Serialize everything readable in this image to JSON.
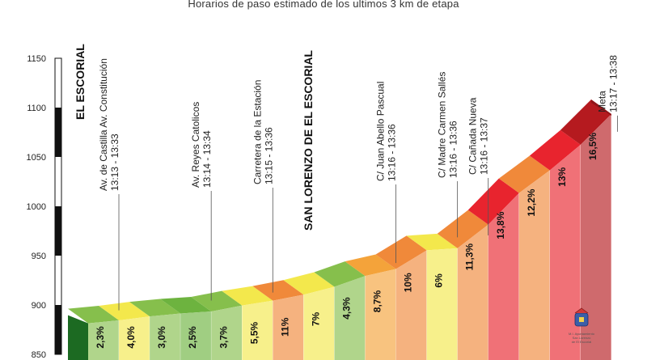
{
  "subtitle": "Horarios de paso estimado de los ultimos 3 km de etapa",
  "colors": {
    "green_dark": "#2f7d2a",
    "green": "#86bf4c",
    "yellow": "#f3e84c",
    "orange": "#f0893a",
    "red": "#e8242e",
    "dark_red": "#b51a1f"
  },
  "chart_data": {
    "type": "area",
    "title": "Horarios de paso estimado de los ultimos 3 km de etapa",
    "ylim": [
      850,
      1150
    ],
    "yticks": [
      "850",
      "900",
      "950",
      "1000",
      "1050",
      "1100",
      "1150"
    ],
    "ytick_values": [
      850,
      900,
      950,
      1000,
      1050,
      1100,
      1150
    ],
    "grid": false,
    "segments": [
      {
        "label": "2,3%",
        "start_alt": 888,
        "end_alt": 891,
        "color": "#86bf4c"
      },
      {
        "label": "4,0%",
        "start_alt": 891,
        "end_alt": 895,
        "color": "#f3e84c"
      },
      {
        "label": "3,0%",
        "start_alt": 895,
        "end_alt": 898,
        "color": "#86bf4c"
      },
      {
        "label": "2,5%",
        "start_alt": 898,
        "end_alt": 900,
        "color": "#6db33f"
      },
      {
        "label": "3,7%",
        "start_alt": 900,
        "end_alt": 906,
        "color": "#86bf4c"
      },
      {
        "label": "5,5%",
        "start_alt": 906,
        "end_alt": 911,
        "color": "#f3e84c"
      },
      {
        "label": "11%",
        "start_alt": 911,
        "end_alt": 917,
        "color": "#f0893a"
      },
      {
        "label": "7%",
        "start_alt": 917,
        "end_alt": 925,
        "color": "#f3e84c"
      },
      {
        "label": "4,3%",
        "start_alt": 925,
        "end_alt": 936,
        "color": "#86bf4c"
      },
      {
        "label": "8,7%",
        "start_alt": 936,
        "end_alt": 943,
        "color": "#f4a33a"
      },
      {
        "label": "10%",
        "start_alt": 943,
        "end_alt": 962,
        "color": "#f0893a"
      },
      {
        "label": "6%",
        "start_alt": 962,
        "end_alt": 964,
        "color": "#f3e84c"
      },
      {
        "label": "11,3%",
        "start_alt": 964,
        "end_alt": 988,
        "color": "#f0893a"
      },
      {
        "label": "13,8%",
        "start_alt": 988,
        "end_alt": 1020,
        "color": "#e8242e"
      },
      {
        "label": "12,2%",
        "start_alt": 1020,
        "end_alt": 1043,
        "color": "#f0893a"
      },
      {
        "label": "13%",
        "start_alt": 1043,
        "end_alt": 1069,
        "color": "#e8242e"
      },
      {
        "label": "16,5%",
        "start_alt": 1069,
        "end_alt": 1100,
        "color": "#b51a1f"
      }
    ],
    "waypoints": [
      {
        "name": "Av. de  Castilla Av. Constitución",
        "time": "13:13 - 13:33",
        "segment": 1
      },
      {
        "name": "Av. Reyes Catolicos",
        "time": "13:14 - 13:34",
        "segment": 4
      },
      {
        "name": "Carretera de la Estación",
        "time": "13:15 - 13:36",
        "segment": 6
      },
      {
        "name": "C/ Juan Abello Pascual",
        "time": "13:16 - 13:36",
        "segment": 10
      },
      {
        "name": "C/ Madre Carmen Sallés",
        "time": "13:16 - 13:36",
        "segment": 12
      },
      {
        "name": "C/ Cañada Nueva",
        "time": "13:16 - 13:37",
        "segment": 13
      },
      {
        "name": "Meta",
        "time": "13:17 - 13:38",
        "segment": 17
      }
    ],
    "towns": [
      "EL ESCORIAL",
      "SAN LORENZO DE EL ESCORIAL"
    ]
  },
  "seal": {
    "line1": "M.I. Ayuntamiento",
    "line2": "San Lorenzo",
    "line3": "de El Escorial"
  }
}
